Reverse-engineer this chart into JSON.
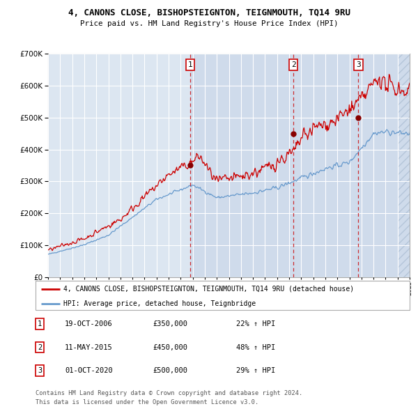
{
  "title1": "4, CANONS CLOSE, BISHOPSTEIGNTON, TEIGNMOUTH, TQ14 9RU",
  "title2": "Price paid vs. HM Land Registry's House Price Index (HPI)",
  "ylim": [
    0,
    700000
  ],
  "yticks": [
    0,
    100000,
    200000,
    300000,
    400000,
    500000,
    600000,
    700000
  ],
  "ytick_labels": [
    "£0",
    "£100K",
    "£200K",
    "£300K",
    "£400K",
    "£500K",
    "£600K",
    "£700K"
  ],
  "red_line_label": "4, CANONS CLOSE, BISHOPSTEIGNTON, TEIGNMOUTH, TQ14 9RU (detached house)",
  "blue_line_label": "HPI: Average price, detached house, Teignbridge",
  "sale1_date": "19-OCT-2006",
  "sale1_price": "£350,000",
  "sale1_hpi": "22% ↑ HPI",
  "sale1_x": 2006.8,
  "sale1_y": 350000,
  "sale2_date": "11-MAY-2015",
  "sale2_price": "£450,000",
  "sale2_hpi": "48% ↑ HPI",
  "sale2_x": 2015.35,
  "sale2_y": 450000,
  "sale3_date": "01-OCT-2020",
  "sale3_price": "£500,000",
  "sale3_hpi": "29% ↑ HPI",
  "sale3_x": 2020.75,
  "sale3_y": 500000,
  "background_color": "#dce6f1",
  "grid_color": "#ffffff",
  "red_color": "#cc0000",
  "blue_color": "#6699cc",
  "footer_text": "Contains HM Land Registry data © Crown copyright and database right 2024.\nThis data is licensed under the Open Government Licence v3.0.",
  "xmin": 1995,
  "xmax": 2025
}
